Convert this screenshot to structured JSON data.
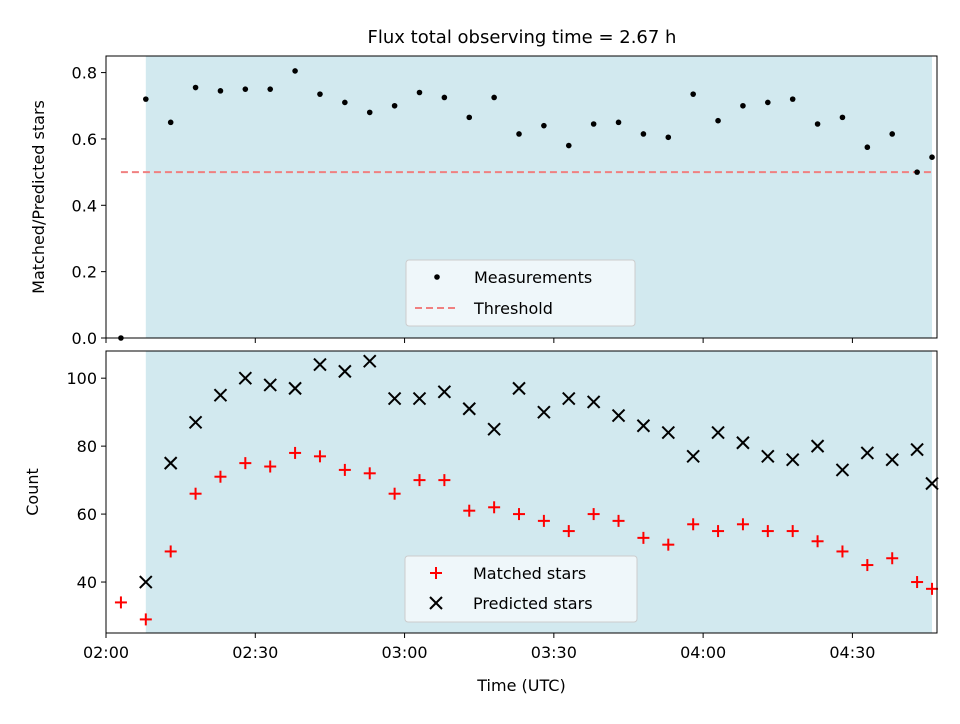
{
  "chart_data": [
    {
      "type": "scatter",
      "title": "Flux total observing time = 2.67 h",
      "xlabel": "",
      "ylabel": "Matched/Predicted stars",
      "xlim": [
        "02:00",
        "04:47"
      ],
      "ylim": [
        0,
        0.85
      ],
      "yticks": [
        "0.0",
        "0.2",
        "0.4",
        "0.6",
        "0.8"
      ],
      "shaded_region": {
        "from": "02:08",
        "to": "04:46",
        "color": "#d2e9ef"
      },
      "threshold": {
        "name": "Threshold",
        "y": 0.5,
        "from": "02:03",
        "to": "04:46",
        "color": "#f08080"
      },
      "legend": {
        "position": "lower-center",
        "entries": [
          "Measurements",
          "Threshold"
        ]
      },
      "series": [
        {
          "name": "Measurements",
          "marker": "dot",
          "color": "#000000",
          "x": [
            "02:03",
            "02:08",
            "02:13",
            "02:18",
            "02:23",
            "02:28",
            "02:33",
            "02:38",
            "02:43",
            "02:48",
            "02:53",
            "02:58",
            "03:03",
            "03:08",
            "03:13",
            "03:18",
            "03:23",
            "03:28",
            "03:33",
            "03:38",
            "03:43",
            "03:48",
            "03:53",
            "03:58",
            "04:03",
            "04:08",
            "04:13",
            "04:18",
            "04:23",
            "04:28",
            "04:33",
            "04:38",
            "04:43",
            "04:46"
          ],
          "y": [
            0.0,
            0.72,
            0.65,
            0.755,
            0.745,
            0.75,
            0.75,
            0.805,
            0.735,
            0.71,
            0.68,
            0.7,
            0.74,
            0.725,
            0.665,
            0.725,
            0.615,
            0.64,
            0.58,
            0.645,
            0.65,
            0.615,
            0.605,
            0.735,
            0.655,
            0.7,
            0.71,
            0.72,
            0.645,
            0.665,
            0.575,
            0.615,
            0.5,
            0.545
          ]
        }
      ]
    },
    {
      "type": "scatter",
      "title": "",
      "xlabel": "Time (UTC)",
      "ylabel": "Count",
      "xlim": [
        "02:00",
        "04:47"
      ],
      "ylim": [
        25,
        108
      ],
      "xticks": [
        "02:00",
        "02:30",
        "03:00",
        "03:30",
        "04:00",
        "04:30"
      ],
      "yticks": [
        "40",
        "60",
        "80",
        "100"
      ],
      "shaded_region": {
        "from": "02:08",
        "to": "04:46",
        "color": "#d2e9ef"
      },
      "legend": {
        "position": "lower-center",
        "entries": [
          "Matched stars",
          "Predicted stars"
        ]
      },
      "series": [
        {
          "name": "Matched stars",
          "marker": "plus",
          "color": "#ff0000",
          "x": [
            "02:03",
            "02:08",
            "02:13",
            "02:18",
            "02:23",
            "02:28",
            "02:33",
            "02:38",
            "02:43",
            "02:48",
            "02:53",
            "02:58",
            "03:03",
            "03:08",
            "03:13",
            "03:18",
            "03:23",
            "03:28",
            "03:33",
            "03:38",
            "03:43",
            "03:48",
            "03:53",
            "03:58",
            "04:03",
            "04:08",
            "04:13",
            "04:18",
            "04:23",
            "04:28",
            "04:33",
            "04:38",
            "04:43",
            "04:46"
          ],
          "y": [
            34,
            29,
            49,
            66,
            71,
            75,
            74,
            78,
            77,
            73,
            72,
            66,
            70,
            70,
            61,
            62,
            60,
            58,
            55,
            60,
            58,
            53,
            51,
            57,
            55,
            57,
            55,
            55,
            52,
            49,
            45,
            47,
            40,
            38
          ]
        },
        {
          "name": "Predicted stars",
          "marker": "x",
          "color": "#000000",
          "x": [
            "02:08",
            "02:13",
            "02:18",
            "02:23",
            "02:28",
            "02:33",
            "02:38",
            "02:43",
            "02:48",
            "02:53",
            "02:58",
            "03:03",
            "03:08",
            "03:13",
            "03:18",
            "03:23",
            "03:28",
            "03:33",
            "03:38",
            "03:43",
            "03:48",
            "03:53",
            "03:58",
            "04:03",
            "04:08",
            "04:13",
            "04:18",
            "04:23",
            "04:28",
            "04:33",
            "04:38",
            "04:43",
            "04:46"
          ],
          "y": [
            40,
            75,
            87,
            95,
            100,
            98,
            97,
            104,
            102,
            105,
            94,
            94,
            96,
            91,
            85,
            97,
            90,
            94,
            93,
            89,
            86,
            84,
            77,
            84,
            81,
            77,
            76,
            80,
            73,
            78,
            76,
            79,
            69
          ]
        }
      ]
    }
  ]
}
